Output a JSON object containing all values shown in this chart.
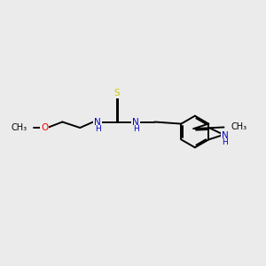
{
  "background_color": "#ebebeb",
  "bond_color": "#000000",
  "bond_width": 1.4,
  "atom_colors": {
    "O": "#ff0000",
    "N": "#0000cd",
    "S": "#cccc00",
    "C": "#000000"
  },
  "font_size": 7.0,
  "figsize": [
    3.0,
    3.0
  ],
  "dpi": 100,
  "xlim": [
    0,
    10
  ],
  "ylim": [
    0,
    10
  ]
}
